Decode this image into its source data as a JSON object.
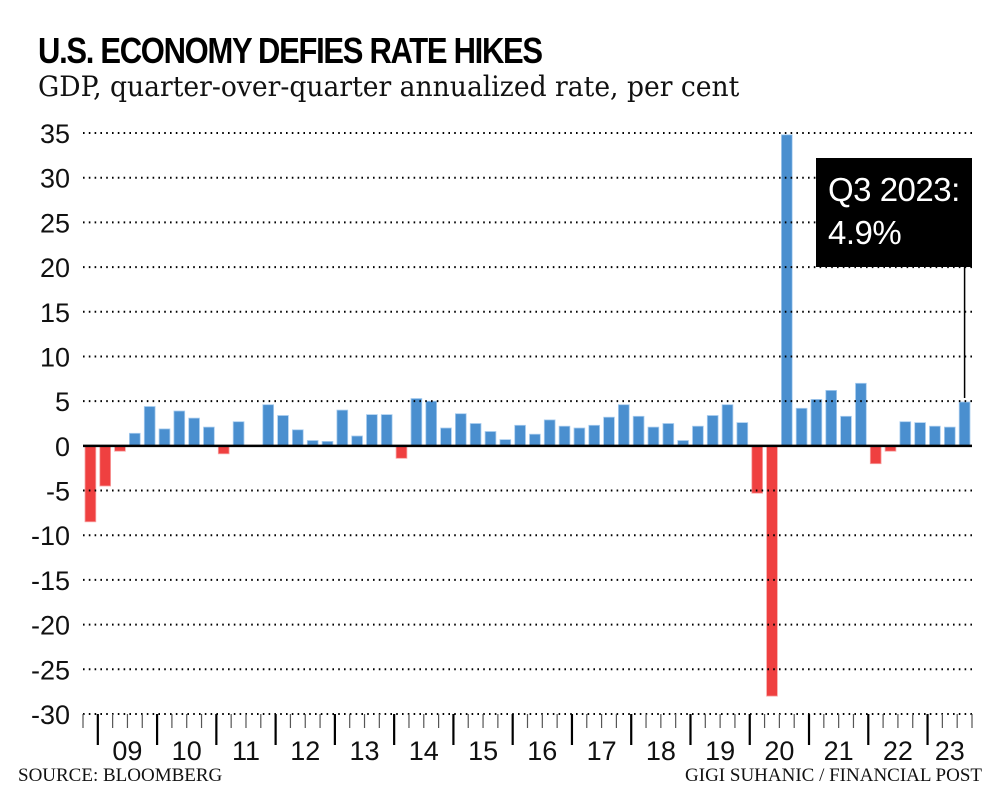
{
  "header": {
    "title": "U.S. ECONOMY DEFIES RATE HIKES",
    "subtitle": "GDP, quarter-over-quarter annualized rate, per cent"
  },
  "footer": {
    "source": "SOURCE: BLOOMBERG",
    "credit": "GIGI SUHANIC / FINANCIAL POST"
  },
  "callout": {
    "line1": "Q3 2023:",
    "line2": "4.9%"
  },
  "colors": {
    "positive": "#4a8fcf",
    "negative": "#ef4040",
    "callout_bg": "#000000"
  },
  "chart_data": {
    "type": "bar",
    "title": "U.S. ECONOMY DEFIES RATE HIKES",
    "subtitle": "GDP, quarter-over-quarter annualized rate, per cent",
    "xlabel": "",
    "ylabel": "",
    "ylim": [
      -30,
      35
    ],
    "yticks": [
      35,
      30,
      25,
      20,
      15,
      10,
      5,
      0,
      -5,
      -10,
      -15,
      -20,
      -25,
      -30
    ],
    "grid": true,
    "legend": "none",
    "x_year_labels": [
      "09",
      "10",
      "11",
      "12",
      "13",
      "14",
      "15",
      "16",
      "17",
      "18",
      "19",
      "20",
      "21",
      "22",
      "23"
    ],
    "categories": [
      "2008Q4",
      "2009Q1",
      "2009Q2",
      "2009Q3",
      "2009Q4",
      "2010Q1",
      "2010Q2",
      "2010Q3",
      "2010Q4",
      "2011Q1",
      "2011Q2",
      "2011Q3",
      "2011Q4",
      "2012Q1",
      "2012Q2",
      "2012Q3",
      "2012Q4",
      "2013Q1",
      "2013Q2",
      "2013Q3",
      "2013Q4",
      "2014Q1",
      "2014Q2",
      "2014Q3",
      "2014Q4",
      "2015Q1",
      "2015Q2",
      "2015Q3",
      "2015Q4",
      "2016Q1",
      "2016Q2",
      "2016Q3",
      "2016Q4",
      "2017Q1",
      "2017Q2",
      "2017Q3",
      "2017Q4",
      "2018Q1",
      "2018Q2",
      "2018Q3",
      "2018Q4",
      "2019Q1",
      "2019Q2",
      "2019Q3",
      "2019Q4",
      "2020Q1",
      "2020Q2",
      "2020Q3",
      "2020Q4",
      "2021Q1",
      "2021Q2",
      "2021Q3",
      "2021Q4",
      "2022Q1",
      "2022Q2",
      "2022Q3",
      "2022Q4",
      "2023Q1",
      "2023Q2",
      "2023Q3"
    ],
    "values": [
      -8.5,
      -4.5,
      -0.6,
      1.4,
      4.4,
      1.9,
      3.9,
      3.1,
      2.1,
      -0.9,
      2.7,
      0.0,
      4.6,
      3.4,
      1.8,
      0.6,
      0.5,
      4.0,
      1.1,
      3.5,
      3.5,
      -1.4,
      5.3,
      5.0,
      2.0,
      3.6,
      2.5,
      1.6,
      0.7,
      2.3,
      1.3,
      2.9,
      2.2,
      2.0,
      2.3,
      3.2,
      4.6,
      3.3,
      2.1,
      2.5,
      0.6,
      2.2,
      3.4,
      4.6,
      2.6,
      -5.3,
      -28.0,
      34.8,
      4.2,
      5.2,
      6.2,
      3.3,
      7.0,
      -2.0,
      -0.6,
      2.7,
      2.6,
      2.2,
      2.1,
      4.9
    ],
    "annotations": [
      {
        "category": "2023Q3",
        "text": "Q3 2023: 4.9%"
      }
    ]
  }
}
